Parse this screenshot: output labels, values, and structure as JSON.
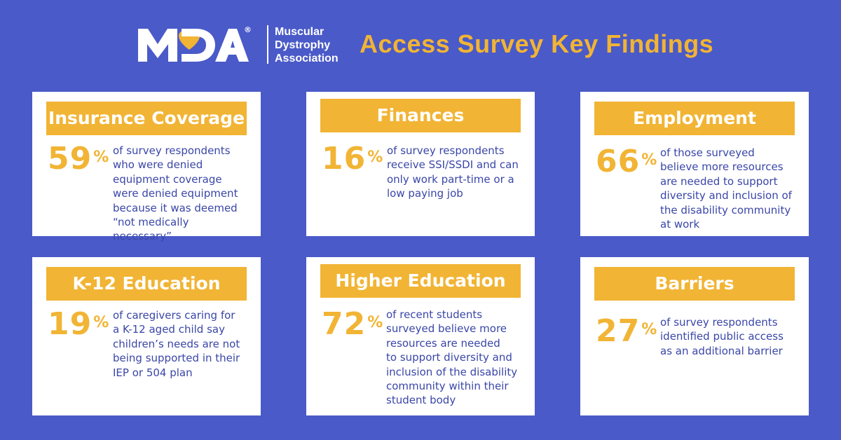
{
  "header": {
    "logo_text": "MDA",
    "org_line1": "Muscular",
    "org_line2": "Dystrophy",
    "org_line3": "Association",
    "title": "Access Survey Key Findings"
  },
  "colors": {
    "background": "#4a5ac8",
    "accent": "#f1b434",
    "text": "#3a46a8",
    "card": "#ffffff"
  },
  "cards": [
    {
      "heading": "Insurance Coverage",
      "percent": "59",
      "percent_sign": "%",
      "lines": [
        "of survey respondents",
        "who were denied",
        "equipment coverage",
        "were denied equipment",
        "because it was deemed",
        "“not medically necessary”"
      ]
    },
    {
      "heading": "Finances",
      "percent": "16",
      "percent_sign": "%",
      "lines": [
        "of survey respondents",
        "receive SSI/SSDI and can",
        "only work part-time or a",
        "low paying job"
      ]
    },
    {
      "heading": "Employment",
      "percent": "66",
      "percent_sign": "%",
      "lines": [
        "of those surveyed",
        "believe more resources",
        "are needed to support",
        "diversity and inclusion of",
        "the disability community",
        "at work"
      ]
    },
    {
      "heading": "K-12 Education",
      "percent": "19",
      "percent_sign": "%",
      "lines": [
        "of caregivers caring for",
        "a K-12 aged child say",
        "children’s needs are not",
        "being supported in their",
        "IEP or 504 plan"
      ]
    },
    {
      "heading": "Higher Education",
      "percent": "72",
      "percent_sign": "%",
      "lines": [
        "of recent students",
        "surveyed believe more",
        "resources are needed",
        "to support diversity and",
        "inclusion of the disability",
        "community within their",
        "student body"
      ]
    },
    {
      "heading": "Barriers",
      "percent": "27",
      "percent_sign": "%",
      "lines": [
        "of survey respondents",
        "identified public access",
        "as an additional barrier"
      ]
    }
  ]
}
